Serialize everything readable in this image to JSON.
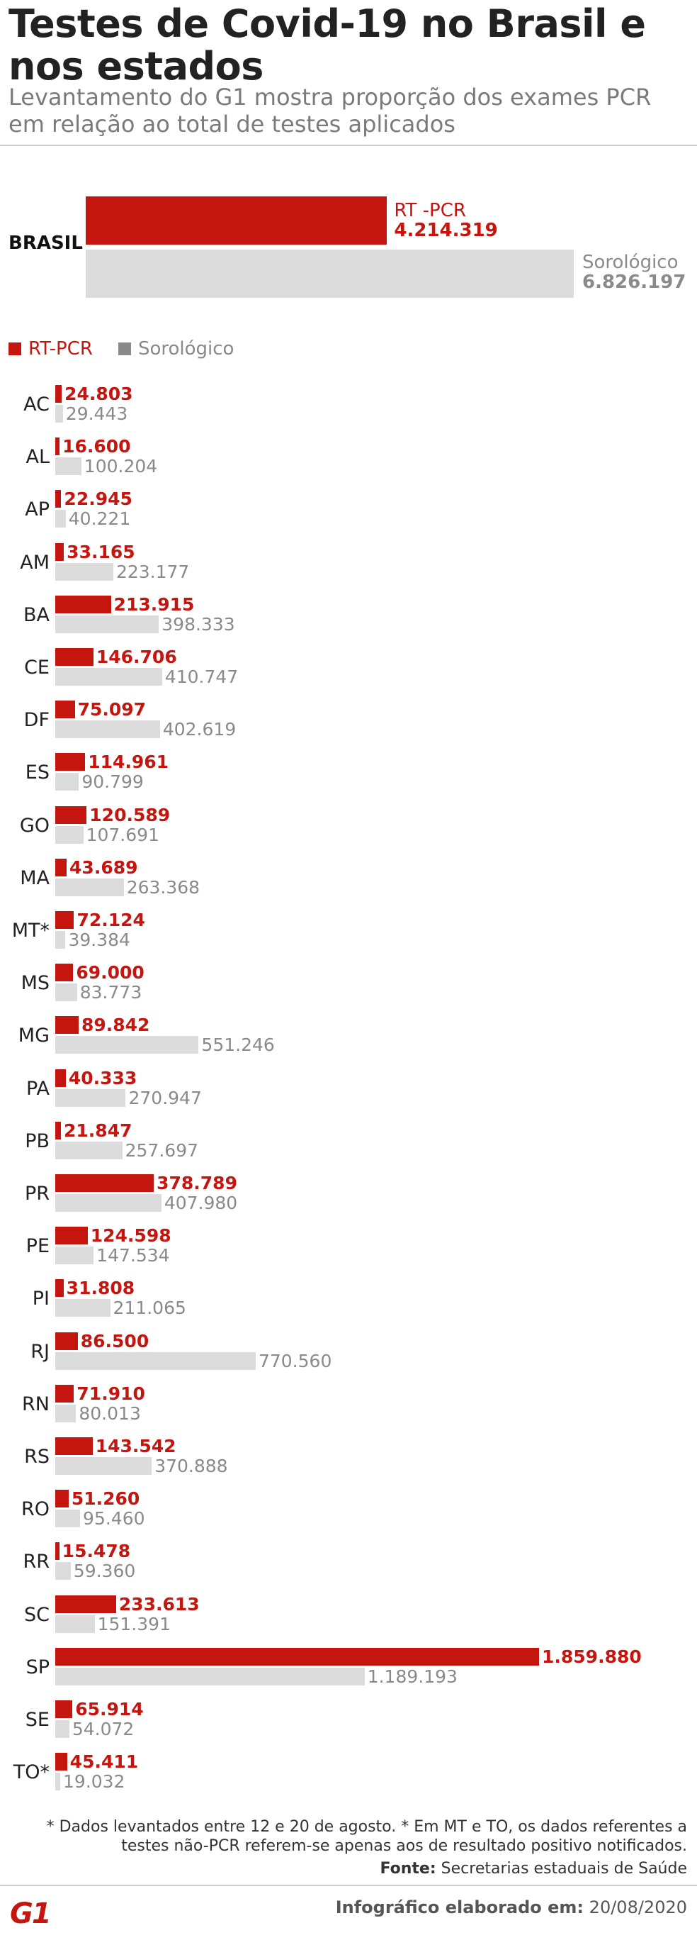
{
  "title": "Testes de Covid-19 no Brasil e nos estados",
  "subtitle": "Levantamento do G1 mostra proporção dos exames PCR em relação ao total de testes aplicados",
  "brasil": {
    "label": "BRASIL",
    "pcr_name": "RT -PCR",
    "pcr_value": 4214319,
    "pcr_text": "4.214.319",
    "sero_name": "Sorológico",
    "sero_value": 6826197,
    "sero_text": "6.826.197"
  },
  "legend": {
    "pcr": "RT-PCR",
    "sero": "Sorológico"
  },
  "colors": {
    "pcr": "#c4150f",
    "sero": "#dcdcdc",
    "sero_text": "#8a8a8a"
  },
  "chart_data": {
    "type": "bar",
    "orientation": "horizontal",
    "categories": [
      "AC",
      "AL",
      "AP",
      "AM",
      "BA",
      "CE",
      "DF",
      "ES",
      "GO",
      "MA",
      "MT*",
      "MS",
      "MG",
      "PA",
      "PB",
      "PR",
      "PE",
      "PI",
      "RJ",
      "RN",
      "RS",
      "RO",
      "RR",
      "SC",
      "SP",
      "SE",
      "TO*"
    ],
    "series": [
      {
        "name": "RT-PCR",
        "values": [
          24803,
          16600,
          22945,
          33165,
          213915,
          146706,
          75097,
          114961,
          120589,
          43689,
          72124,
          69000,
          89842,
          40333,
          21847,
          378789,
          124598,
          31808,
          86500,
          71910,
          143542,
          51260,
          15478,
          233613,
          1859880,
          65914,
          45411
        ],
        "labels": [
          "24.803",
          "16.600",
          "22.945",
          "33.165",
          "213.915",
          "146.706",
          "75.097",
          "114.961",
          "120.589",
          "43.689",
          "72.124",
          "69.000",
          "89.842",
          "40.333",
          "21.847",
          "378.789",
          "124.598",
          "31.808",
          "86.500",
          "71.910",
          "143.542",
          "51.260",
          "15.478",
          "233.613",
          "1.859.880",
          "65.914",
          "45.411"
        ]
      },
      {
        "name": "Sorológico",
        "values": [
          29443,
          100204,
          40221,
          223177,
          398333,
          410747,
          402619,
          90799,
          107691,
          263368,
          39384,
          83773,
          551246,
          270947,
          257697,
          407980,
          147534,
          211065,
          770560,
          80013,
          370888,
          95460,
          59360,
          151391,
          1189193,
          54072,
          19032
        ],
        "labels": [
          "29.443",
          "100.204",
          "40.221",
          "223.177",
          "398.333",
          "410.747",
          "402.619",
          "90.799",
          "107.691",
          "263.368",
          "39.384",
          "83.773",
          "551.246",
          "270.947",
          "257.697",
          "407.980",
          "147.534",
          "211.065",
          "770.560",
          "80.013",
          "370.888",
          "95.460",
          "59.360",
          "151.391",
          "1.189.193",
          "54.072",
          "19.032"
        ]
      }
    ]
  },
  "notes": {
    "footnote": "* Dados levantados entre 12 e 20 de agosto. * Em MT e TO, os dados referentes a testes não-PCR referem-se apenas aos de resultado positivo notificados.",
    "source_key": "Fonte:",
    "source_value": "Secretarias estaduais de Saúde"
  },
  "footer": {
    "logo": "G1",
    "credit_key": "Infográfico elaborado em:",
    "credit_value": "20/08/2020"
  }
}
